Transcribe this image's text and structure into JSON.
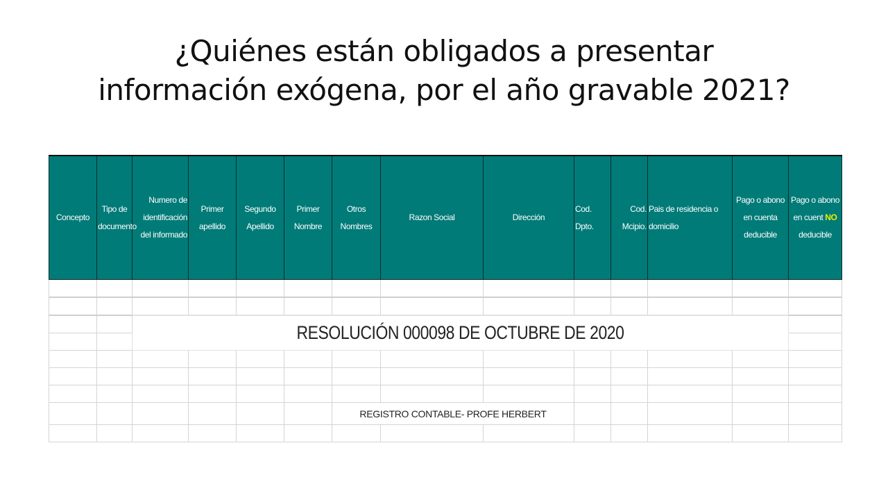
{
  "title": {
    "line1": "¿Quiénes están obligados a presentar",
    "line2": "información exógena, por el año gravable 2021?"
  },
  "table": {
    "header_color": "#007b78",
    "headers": [
      "Concepto",
      "Tipo de documento",
      "Numero de identificación del informado",
      "Primer apellido",
      "Segundo Apellido",
      "Primer Nombre",
      "Otros Nombres",
      "Razon Social",
      "Dirección",
      "Cod. Dpto.",
      "Cod. Mcipio.",
      "Pais de residencia o domicilio",
      "Pago o abono en cuenta deducible"
    ],
    "last_header": {
      "prefix": "Pago o abono en cuent",
      "highlight": "NO",
      "suffix": "deducible"
    },
    "merged_text": "RESOLUCIÓN 000098 DE OCTUBRE DE 2020",
    "footer_text": "REGISTRO CONTABLE- PROFE HERBERT"
  }
}
